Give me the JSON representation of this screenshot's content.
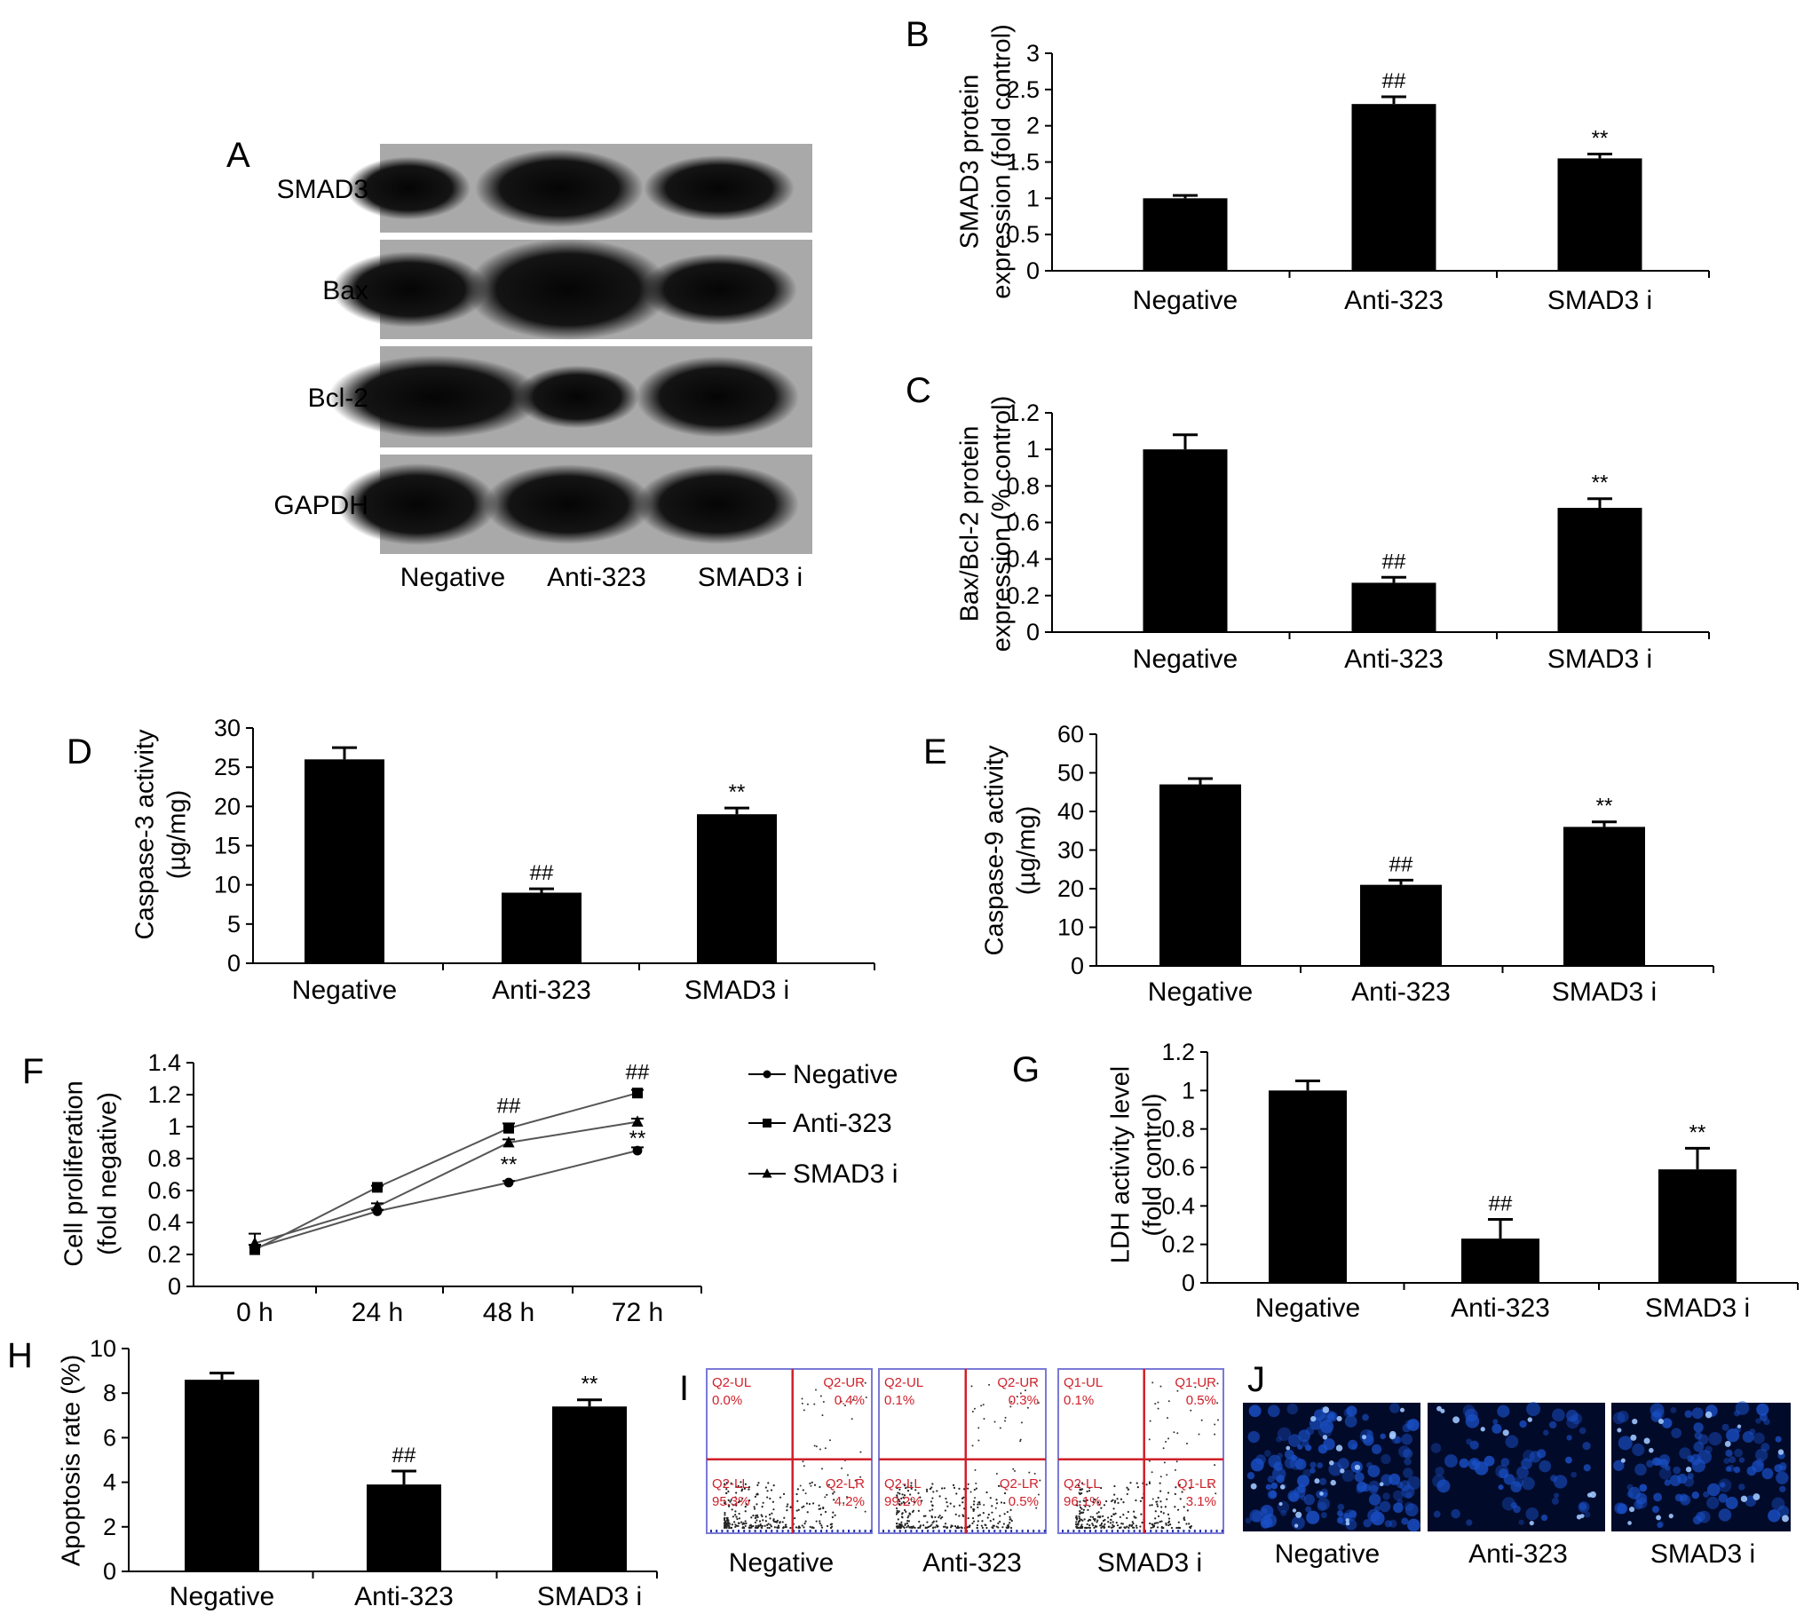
{
  "panels": {
    "A": "A",
    "B": "B",
    "C": "C",
    "D": "D",
    "E": "E",
    "F": "F",
    "G": "G",
    "H": "H",
    "I": "I",
    "J": "J"
  },
  "groups": [
    "Negative",
    "Anti-323",
    "SMAD3 i"
  ],
  "colors": {
    "bar": "#000000",
    "quadrant_line": "#d0202a",
    "frame": "#7a7ad6",
    "fluorescence": "#1a50c8"
  },
  "western_blot": {
    "bands": [
      "SMAD3",
      "Bax",
      "Bcl-2",
      "GAPDH"
    ],
    "lanes": [
      "Negative",
      "Anti-323",
      "SMAD3 i"
    ]
  },
  "chart_data": [
    {
      "panel": "B",
      "type": "bar",
      "categories": [
        "Negative",
        "Anti-323",
        "SMAD3 i"
      ],
      "values": [
        1.0,
        2.3,
        1.55
      ],
      "errors": [
        0.04,
        0.1,
        0.06
      ],
      "annotations": [
        "",
        "##",
        "**"
      ],
      "ylabel": [
        "SMAD3 protein",
        "expression (fold control)"
      ],
      "ylim": [
        0,
        3
      ],
      "yticks": [
        "0",
        "0.5",
        "1",
        "1.5",
        "2",
        "2.5",
        "3"
      ]
    },
    {
      "panel": "C",
      "type": "bar",
      "categories": [
        "Negative",
        "Anti-323",
        "SMAD3 i"
      ],
      "values": [
        1.0,
        0.27,
        0.68
      ],
      "errors": [
        0.08,
        0.03,
        0.05
      ],
      "annotations": [
        "",
        "##",
        "**"
      ],
      "ylabel": [
        "Bax/Bcl-2 protein",
        "expression (% control)"
      ],
      "ylim": [
        0,
        1.2
      ],
      "yticks": [
        "0",
        "0.2",
        "0.4",
        "0.6",
        "0.8",
        "1",
        "1.2"
      ]
    },
    {
      "panel": "D",
      "type": "bar",
      "categories": [
        "Negative",
        "Anti-323",
        "SMAD3 i"
      ],
      "values": [
        26,
        9,
        19
      ],
      "errors": [
        1.5,
        0.5,
        0.8
      ],
      "annotations": [
        "",
        "##",
        "**"
      ],
      "ylabel": [
        "Caspase-3 activity",
        "(µg/mg)"
      ],
      "ylim": [
        0,
        30
      ],
      "yticks": [
        "0",
        "5",
        "10",
        "15",
        "20",
        "25",
        "30"
      ]
    },
    {
      "panel": "E",
      "type": "bar",
      "categories": [
        "Negative",
        "Anti-323",
        "SMAD3 i"
      ],
      "values": [
        47,
        21,
        36
      ],
      "errors": [
        1.5,
        1.2,
        1.3
      ],
      "annotations": [
        "",
        "##",
        "**"
      ],
      "ylabel": [
        "Caspase-9 activity",
        "(µg/mg)"
      ],
      "ylim": [
        0,
        60
      ],
      "yticks": [
        "0",
        "10",
        "20",
        "30",
        "40",
        "50",
        "60"
      ]
    },
    {
      "panel": "F",
      "type": "line",
      "x": [
        "0 h",
        "24 h",
        "48 h",
        "72 h"
      ],
      "series": [
        {
          "name": "Negative",
          "marker": "circle",
          "values": [
            0.24,
            0.47,
            0.65,
            0.85
          ],
          "errors": [
            0.02,
            0.01,
            0.01,
            0.02
          ]
        },
        {
          "name": "Anti-323",
          "marker": "square",
          "values": [
            0.23,
            0.62,
            0.99,
            1.21
          ],
          "errors": [
            0.03,
            0.01,
            0.03,
            0.02
          ]
        },
        {
          "name": "SMAD3 i",
          "marker": "triangle",
          "values": [
            0.27,
            0.5,
            0.9,
            1.03
          ],
          "errors": [
            0.06,
            0.02,
            0.02,
            0.02
          ]
        }
      ],
      "annotations": [
        {
          "x": "48 h",
          "upper": "##",
          "lower": "**"
        },
        {
          "x": "72 h",
          "upper": "##",
          "lower": "**"
        }
      ],
      "ylabel": [
        "Cell proliferation",
        "(fold negative)"
      ],
      "ylim": [
        0,
        1.4
      ],
      "yticks": [
        "0",
        "0.2",
        "0.4",
        "0.6",
        "0.8",
        "1",
        "1.2",
        "1.4"
      ]
    },
    {
      "panel": "G",
      "type": "bar",
      "categories": [
        "Negative",
        "Anti-323",
        "SMAD3 i"
      ],
      "values": [
        1.0,
        0.23,
        0.59
      ],
      "errors": [
        0.05,
        0.1,
        0.11
      ],
      "annotations": [
        "",
        "##",
        "**"
      ],
      "ylabel": [
        "LDH activity level",
        "(fold control)"
      ],
      "ylim": [
        0,
        1.2
      ],
      "yticks": [
        "0",
        "0.2",
        "0.4",
        "0.6",
        "0.8",
        "1",
        "1.2"
      ]
    },
    {
      "panel": "H",
      "type": "bar",
      "categories": [
        "Negative",
        "Anti-323",
        "SMAD3 i"
      ],
      "values": [
        8.6,
        3.9,
        7.4
      ],
      "errors": [
        0.3,
        0.6,
        0.3
      ],
      "annotations": [
        "",
        "##",
        "**"
      ],
      "ylabel": [
        "Apoptosis rate (%)"
      ],
      "ylim": [
        0,
        10
      ],
      "yticks": [
        "0",
        "2",
        "4",
        "6",
        "8",
        "10"
      ]
    }
  ],
  "flow_cytometry": {
    "plots": [
      {
        "label": "Negative",
        "UL": [
          "Q2-UL",
          "0.0%"
        ],
        "UR": [
          "Q2-UR",
          "0.4%"
        ],
        "LL": [
          "Q2-LL",
          "95.3%"
        ],
        "LR": [
          "Q2-LR",
          "4.2%"
        ]
      },
      {
        "label": "Anti-323",
        "UL": [
          "Q2-UL",
          "0.1%"
        ],
        "UR": [
          "Q2-UR",
          "0.3%"
        ],
        "LL": [
          "Q2-LL",
          "99.2%"
        ],
        "LR": [
          "Q2-LR",
          "0.5%"
        ]
      },
      {
        "label": "SMAD3 i",
        "UL": [
          "Q1-UL",
          "0.1%"
        ],
        "UR": [
          "Q1-UR",
          "0.5%"
        ],
        "LL": [
          "Q2-LL",
          "96.1%"
        ],
        "LR": [
          "Q1-LR",
          "3.1%"
        ]
      }
    ]
  },
  "fluorescence": {
    "labels": [
      "Negative",
      "Anti-323",
      "SMAD3 i"
    ]
  }
}
